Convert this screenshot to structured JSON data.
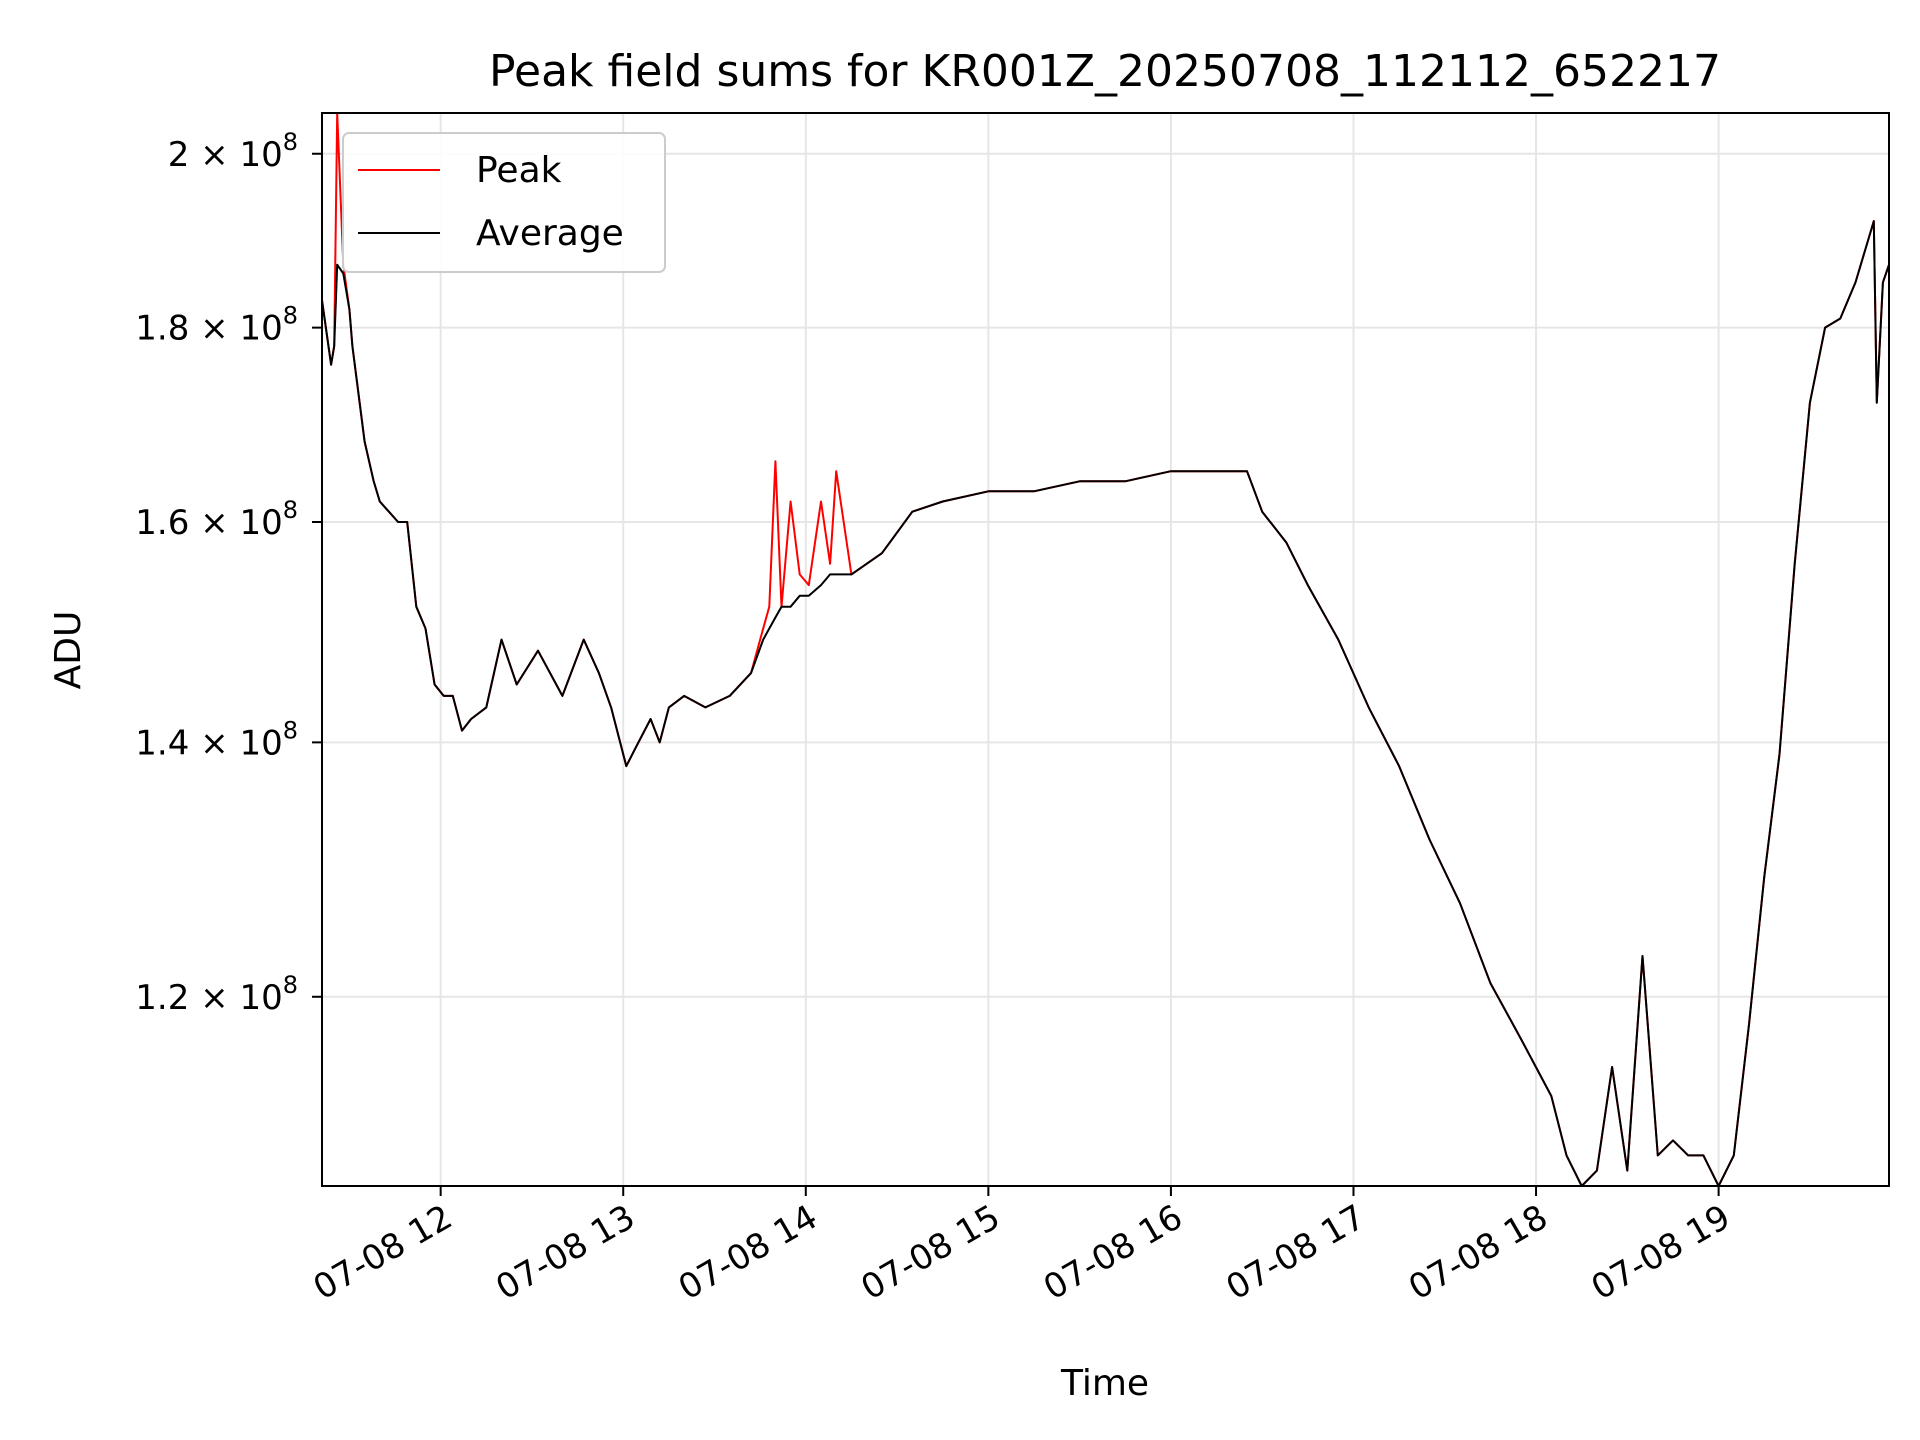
{
  "chart_data": {
    "type": "line",
    "title": "Peak field sums for KR001Z_20250708_112112_652217",
    "xlabel": "Time",
    "ylabel": "ADU",
    "x_axis": "time",
    "y_scale": "log",
    "xlim": [
      "2025-07-08 11:21",
      "2025-07-08 19:56"
    ],
    "ylim": [
      107000000,
      205000000
    ],
    "grid": true,
    "legend_position": "upper-left",
    "x_ticks": [
      {
        "value": "2025-07-08 12:00",
        "label": "07-08 12"
      },
      {
        "value": "2025-07-08 13:00",
        "label": "07-08 13"
      },
      {
        "value": "2025-07-08 14:00",
        "label": "07-08 14"
      },
      {
        "value": "2025-07-08 15:00",
        "label": "07-08 15"
      },
      {
        "value": "2025-07-08 16:00",
        "label": "07-08 16"
      },
      {
        "value": "2025-07-08 17:00",
        "label": "07-08 17"
      },
      {
        "value": "2025-07-08 18:00",
        "label": "07-08 18"
      },
      {
        "value": "2025-07-08 19:00",
        "label": "07-08 19"
      }
    ],
    "y_ticks": [
      {
        "value": 120000000,
        "mantissa": "1.2",
        "base": "10",
        "exp": "8"
      },
      {
        "value": 140000000,
        "mantissa": "1.4",
        "base": "10",
        "exp": "8"
      },
      {
        "value": 160000000,
        "mantissa": "1.6",
        "base": "10",
        "exp": "8"
      },
      {
        "value": 180000000,
        "mantissa": "1.8",
        "base": "10",
        "exp": "8"
      },
      {
        "value": 200000000,
        "mantissa": "2",
        "base": "10",
        "exp": "8"
      }
    ],
    "series": [
      {
        "name": "Peak",
        "color": "#ff0000",
        "x": [
          "2025-07-08 11:21",
          "2025-07-08 11:24",
          "2025-07-08 11:25",
          "2025-07-08 11:26",
          "2025-07-08 11:28",
          "2025-07-08 11:30",
          "2025-07-08 11:31",
          "2025-07-08 11:35",
          "2025-07-08 11:38",
          "2025-07-08 11:40",
          "2025-07-08 11:43",
          "2025-07-08 11:46",
          "2025-07-08 11:49",
          "2025-07-08 11:52",
          "2025-07-08 11:55",
          "2025-07-08 11:58",
          "2025-07-08 12:01",
          "2025-07-08 12:04",
          "2025-07-08 12:07",
          "2025-07-08 12:10",
          "2025-07-08 12:15",
          "2025-07-08 12:20",
          "2025-07-08 12:25",
          "2025-07-08 12:32",
          "2025-07-08 12:40",
          "2025-07-08 12:47",
          "2025-07-08 12:52",
          "2025-07-08 12:56",
          "2025-07-08 13:01",
          "2025-07-08 13:05",
          "2025-07-08 13:09",
          "2025-07-08 13:12",
          "2025-07-08 13:15",
          "2025-07-08 13:20",
          "2025-07-08 13:27",
          "2025-07-08 13:35",
          "2025-07-08 13:42",
          "2025-07-08 13:46",
          "2025-07-08 13:48",
          "2025-07-08 13:50",
          "2025-07-08 13:52",
          "2025-07-08 13:55",
          "2025-07-08 13:58",
          "2025-07-08 14:01",
          "2025-07-08 14:05",
          "2025-07-08 14:08",
          "2025-07-08 14:10",
          "2025-07-08 14:15",
          "2025-07-08 14:25",
          "2025-07-08 14:35",
          "2025-07-08 14:45",
          "2025-07-08 15:00",
          "2025-07-08 15:15",
          "2025-07-08 15:30",
          "2025-07-08 15:45",
          "2025-07-08 16:00",
          "2025-07-08 16:15",
          "2025-07-08 16:25",
          "2025-07-08 16:30",
          "2025-07-08 16:38",
          "2025-07-08 16:45",
          "2025-07-08 16:55",
          "2025-07-08 17:05",
          "2025-07-08 17:15",
          "2025-07-08 17:25",
          "2025-07-08 17:35",
          "2025-07-08 17:45",
          "2025-07-08 17:55",
          "2025-07-08 18:05",
          "2025-07-08 18:10",
          "2025-07-08 18:15",
          "2025-07-08 18:20",
          "2025-07-08 18:25",
          "2025-07-08 18:30",
          "2025-07-08 18:35",
          "2025-07-08 18:40",
          "2025-07-08 18:45",
          "2025-07-08 18:50",
          "2025-07-08 18:55",
          "2025-07-08 19:00",
          "2025-07-08 19:05",
          "2025-07-08 19:10",
          "2025-07-08 19:15",
          "2025-07-08 19:20",
          "2025-07-08 19:25",
          "2025-07-08 19:30",
          "2025-07-08 19:35",
          "2025-07-08 19:40",
          "2025-07-08 19:45",
          "2025-07-08 19:51",
          "2025-07-08 19:52",
          "2025-07-08 19:54",
          "2025-07-08 19:56"
        ],
        "y": [
          183000000,
          176000000,
          178000000,
          205000000,
          187000000,
          182000000,
          178000000,
          168000000,
          164000000,
          162000000,
          161000000,
          160000000,
          160000000,
          152000000,
          150000000,
          145000000,
          144000000,
          144000000,
          141000000,
          142000000,
          143000000,
          149000000,
          145000000,
          148000000,
          144000000,
          149000000,
          146000000,
          143000000,
          138000000,
          140000000,
          142000000,
          140000000,
          143000000,
          144000000,
          143000000,
          144000000,
          146000000,
          150000000,
          152000000,
          166000000,
          152000000,
          162000000,
          155000000,
          154000000,
          162000000,
          156000000,
          165000000,
          155000000,
          157000000,
          161000000,
          162000000,
          163000000,
          163000000,
          164000000,
          164000000,
          165000000,
          165000000,
          165000000,
          161000000,
          158000000,
          154000000,
          149000000,
          143000000,
          138000000,
          132000000,
          127000000,
          121000000,
          117000000,
          113000000,
          109000000,
          107000000,
          108000000,
          115000000,
          108000000,
          123000000,
          109000000,
          110000000,
          109000000,
          109000000,
          107000000,
          109000000,
          118000000,
          129000000,
          139000000,
          156000000,
          172000000,
          180000000,
          181000000,
          185000000,
          192000000,
          172000000,
          185000000,
          187000000
        ]
      },
      {
        "name": "Average",
        "color": "#000000",
        "x": [
          "2025-07-08 11:21",
          "2025-07-08 11:24",
          "2025-07-08 11:25",
          "2025-07-08 11:26",
          "2025-07-08 11:28",
          "2025-07-08 11:30",
          "2025-07-08 11:31",
          "2025-07-08 11:35",
          "2025-07-08 11:38",
          "2025-07-08 11:40",
          "2025-07-08 11:43",
          "2025-07-08 11:46",
          "2025-07-08 11:49",
          "2025-07-08 11:52",
          "2025-07-08 11:55",
          "2025-07-08 11:58",
          "2025-07-08 12:01",
          "2025-07-08 12:04",
          "2025-07-08 12:07",
          "2025-07-08 12:10",
          "2025-07-08 12:15",
          "2025-07-08 12:20",
          "2025-07-08 12:25",
          "2025-07-08 12:32",
          "2025-07-08 12:40",
          "2025-07-08 12:47",
          "2025-07-08 12:52",
          "2025-07-08 12:56",
          "2025-07-08 13:01",
          "2025-07-08 13:05",
          "2025-07-08 13:09",
          "2025-07-08 13:12",
          "2025-07-08 13:15",
          "2025-07-08 13:20",
          "2025-07-08 13:27",
          "2025-07-08 13:35",
          "2025-07-08 13:42",
          "2025-07-08 13:46",
          "2025-07-08 13:48",
          "2025-07-08 13:50",
          "2025-07-08 13:52",
          "2025-07-08 13:55",
          "2025-07-08 13:58",
          "2025-07-08 14:01",
          "2025-07-08 14:05",
          "2025-07-08 14:08",
          "2025-07-08 14:10",
          "2025-07-08 14:15",
          "2025-07-08 14:25",
          "2025-07-08 14:35",
          "2025-07-08 14:45",
          "2025-07-08 15:00",
          "2025-07-08 15:15",
          "2025-07-08 15:30",
          "2025-07-08 15:45",
          "2025-07-08 16:00",
          "2025-07-08 16:15",
          "2025-07-08 16:25",
          "2025-07-08 16:30",
          "2025-07-08 16:38",
          "2025-07-08 16:45",
          "2025-07-08 16:55",
          "2025-07-08 17:05",
          "2025-07-08 17:15",
          "2025-07-08 17:25",
          "2025-07-08 17:35",
          "2025-07-08 17:45",
          "2025-07-08 17:55",
          "2025-07-08 18:05",
          "2025-07-08 18:10",
          "2025-07-08 18:15",
          "2025-07-08 18:20",
          "2025-07-08 18:25",
          "2025-07-08 18:30",
          "2025-07-08 18:35",
          "2025-07-08 18:40",
          "2025-07-08 18:45",
          "2025-07-08 18:50",
          "2025-07-08 18:55",
          "2025-07-08 19:00",
          "2025-07-08 19:05",
          "2025-07-08 19:10",
          "2025-07-08 19:15",
          "2025-07-08 19:20",
          "2025-07-08 19:25",
          "2025-07-08 19:30",
          "2025-07-08 19:35",
          "2025-07-08 19:40",
          "2025-07-08 19:45",
          "2025-07-08 19:51",
          "2025-07-08 19:52",
          "2025-07-08 19:54",
          "2025-07-08 19:56"
        ],
        "y": [
          183000000,
          176000000,
          178000000,
          187000000,
          186000000,
          182000000,
          178000000,
          168000000,
          164000000,
          162000000,
          161000000,
          160000000,
          160000000,
          152000000,
          150000000,
          145000000,
          144000000,
          144000000,
          141000000,
          142000000,
          143000000,
          149000000,
          145000000,
          148000000,
          144000000,
          149000000,
          146000000,
          143000000,
          138000000,
          140000000,
          142000000,
          140000000,
          143000000,
          144000000,
          143000000,
          144000000,
          146000000,
          149000000,
          150000000,
          151000000,
          152000000,
          152000000,
          153000000,
          153000000,
          154000000,
          155000000,
          155000000,
          155000000,
          157000000,
          161000000,
          162000000,
          163000000,
          163000000,
          164000000,
          164000000,
          165000000,
          165000000,
          165000000,
          161000000,
          158000000,
          154000000,
          149000000,
          143000000,
          138000000,
          132000000,
          127000000,
          121000000,
          117000000,
          113000000,
          109000000,
          107000000,
          108000000,
          115000000,
          108000000,
          123000000,
          109000000,
          110000000,
          109000000,
          109000000,
          107000000,
          109000000,
          118000000,
          129000000,
          139000000,
          156000000,
          172000000,
          180000000,
          181000000,
          185000000,
          192000000,
          172000000,
          185000000,
          187000000
        ]
      }
    ]
  }
}
